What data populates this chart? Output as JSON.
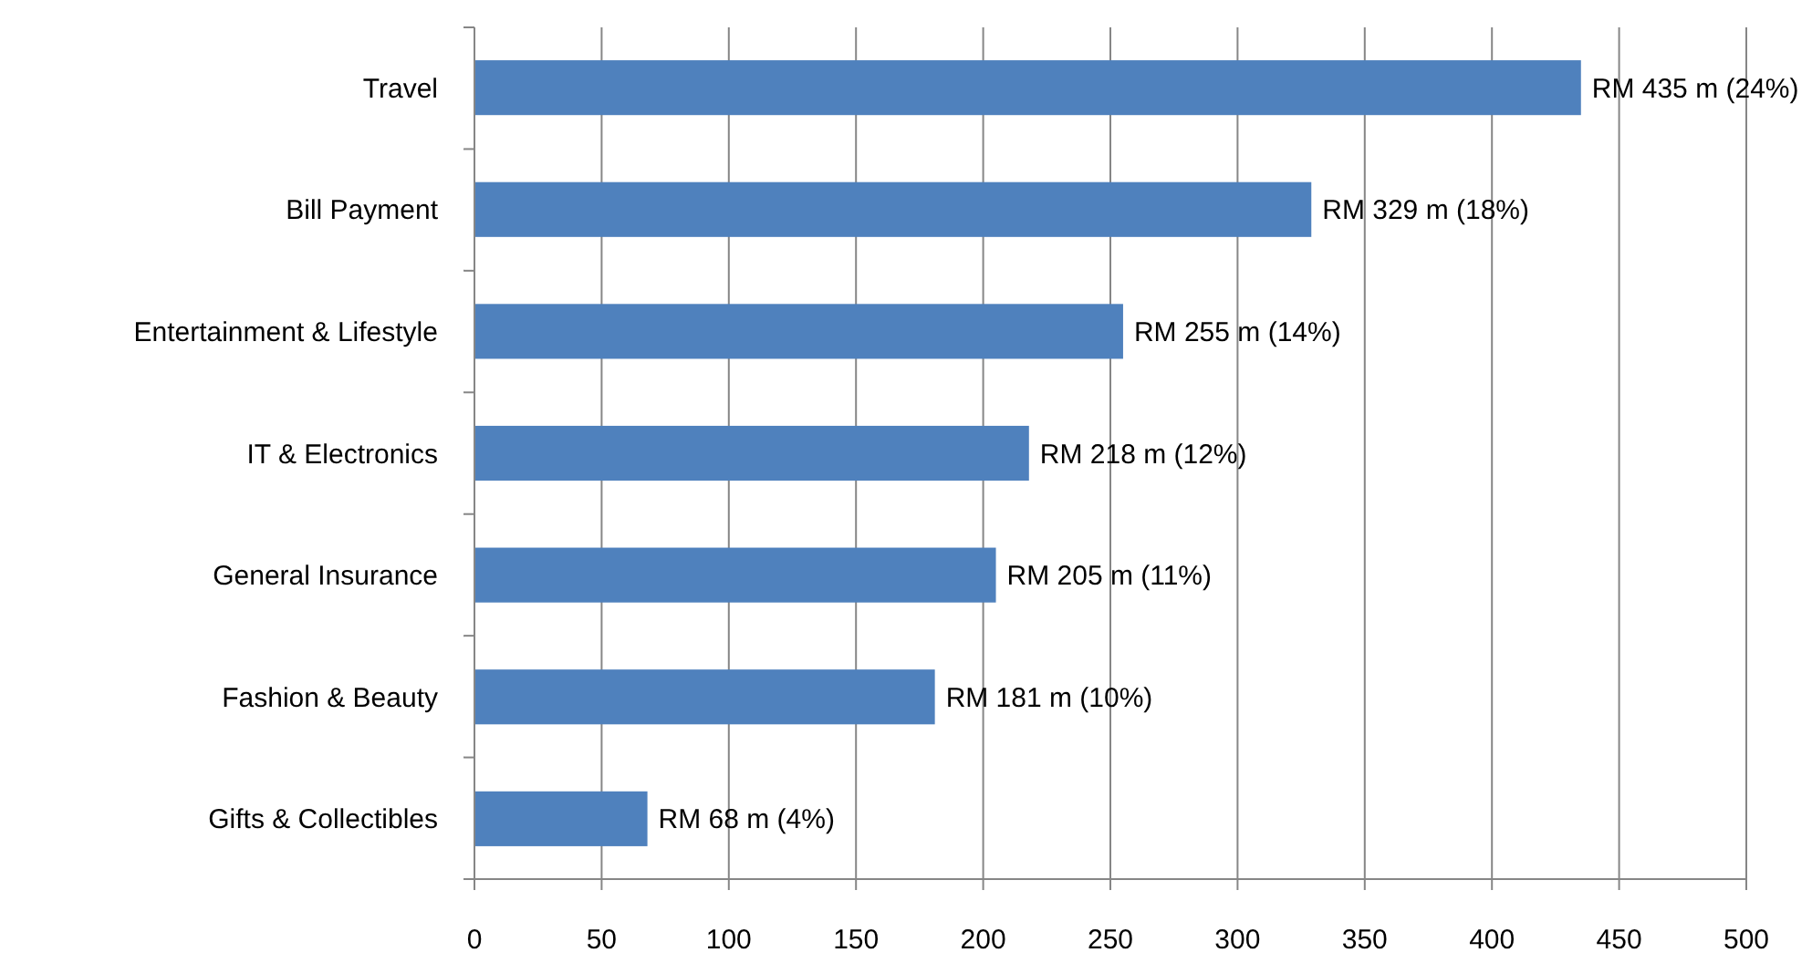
{
  "chart_data": {
    "type": "bar",
    "orientation": "horizontal",
    "categories": [
      "Travel",
      "Bill Payment",
      "Entertainment & Lifestyle",
      "IT & Electronics",
      "General Insurance",
      "Fashion & Beauty",
      "Gifts & Collectibles"
    ],
    "values": [
      435,
      329,
      255,
      218,
      205,
      181,
      68
    ],
    "value_labels": [
      "RM 435 m (24%)",
      "RM 329 m (18%)",
      "RM 255 m (14%)",
      "RM 218 m (12%)",
      "RM 205 m (11%)",
      "RM 181 m (10%)",
      "RM 68 m (4%)"
    ],
    "color": "#4f81bd",
    "xlim": [
      0,
      500
    ],
    "xticks": [
      0,
      50,
      100,
      150,
      200,
      250,
      300,
      350,
      400,
      450,
      500
    ],
    "grid": "x"
  }
}
